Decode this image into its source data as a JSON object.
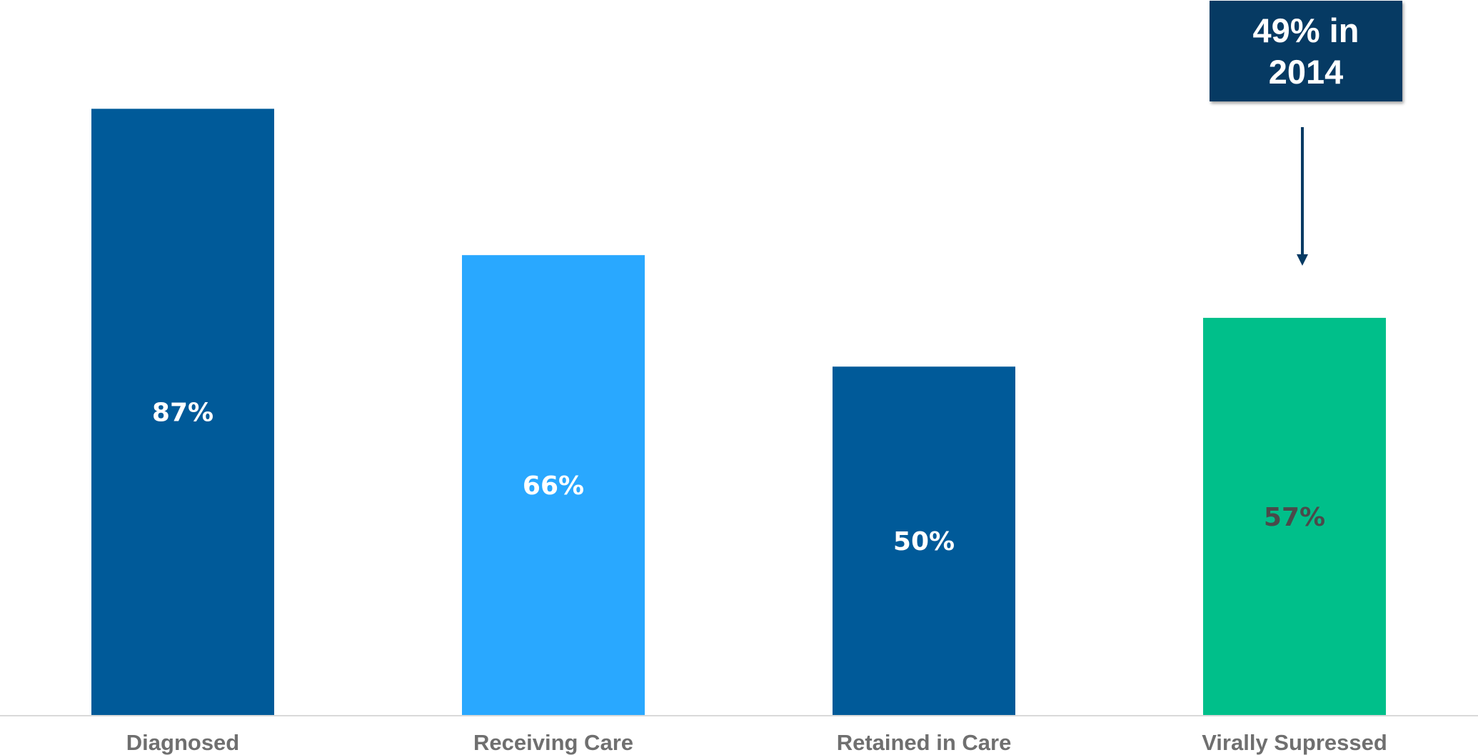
{
  "chart_data": {
    "type": "bar",
    "categories": [
      "Diagnosed",
      "Receiving Care",
      "Retained in Care",
      "Virally Supressed"
    ],
    "values": [
      87,
      66,
      50,
      57
    ],
    "value_labels": [
      "87%",
      "66%",
      "50%",
      "57%"
    ],
    "ylim": [
      0,
      100
    ],
    "grid": false,
    "bar_colors": [
      "#005a99",
      "#29a8ff",
      "#005a99",
      "#00bf8a"
    ],
    "label_colors": [
      "#ffffff",
      "#ffffff",
      "#ffffff",
      "#4a4a4a"
    ],
    "annotation": {
      "text": "49% in\n2014",
      "category": "Virally Supressed",
      "color": "#063a63"
    }
  }
}
